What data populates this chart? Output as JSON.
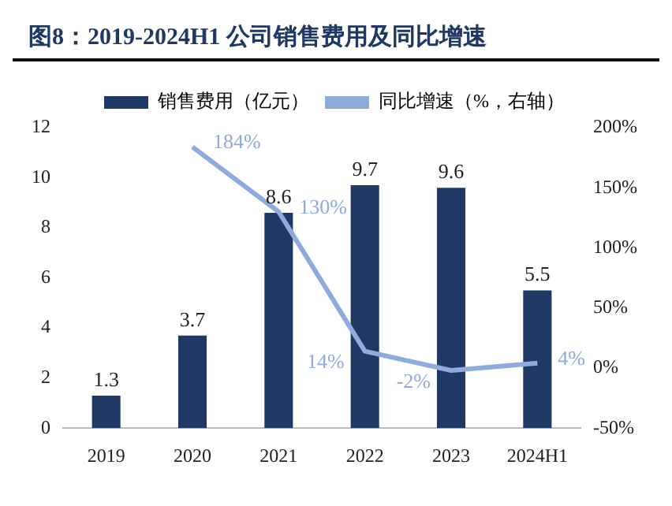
{
  "chart_data": {
    "type": "bar",
    "title": "图8：2019-2024H1 公司销售费用及同比增速",
    "categories": [
      "2019",
      "2020",
      "2021",
      "2022",
      "2023",
      "2024H1"
    ],
    "series": [
      {
        "name": "销售费用（亿元）",
        "color": "#1f3864",
        "values": [
          1.3,
          3.7,
          8.6,
          9.7,
          9.6,
          5.5
        ],
        "value_labels": [
          "1.3",
          "3.7",
          "8.6",
          "9.7",
          "9.6",
          "5.5"
        ]
      },
      {
        "name": "同比增速（%，右轴）",
        "type": "line",
        "axis": "y2",
        "color": "#8faadc",
        "values": [
          null,
          184,
          130,
          14,
          -2,
          4
        ],
        "value_labels": [
          null,
          "184%",
          "130%",
          "14%",
          "-2%",
          "4%"
        ]
      }
    ],
    "ylim": [
      0,
      12
    ],
    "yticks": [
      0,
      2,
      4,
      6,
      8,
      10,
      12
    ],
    "y2lim": [
      -50,
      200
    ],
    "y2ticks": [
      {
        "value": -50,
        "label": "-50%"
      },
      {
        "value": 0,
        "label": "0%"
      },
      {
        "value": 50,
        "label": "50%"
      },
      {
        "value": 100,
        "label": "100%"
      },
      {
        "value": 150,
        "label": "150%"
      },
      {
        "value": 200,
        "label": "200%"
      }
    ],
    "grid": false,
    "legend": "top",
    "marker": "none",
    "line_style": "solid"
  }
}
